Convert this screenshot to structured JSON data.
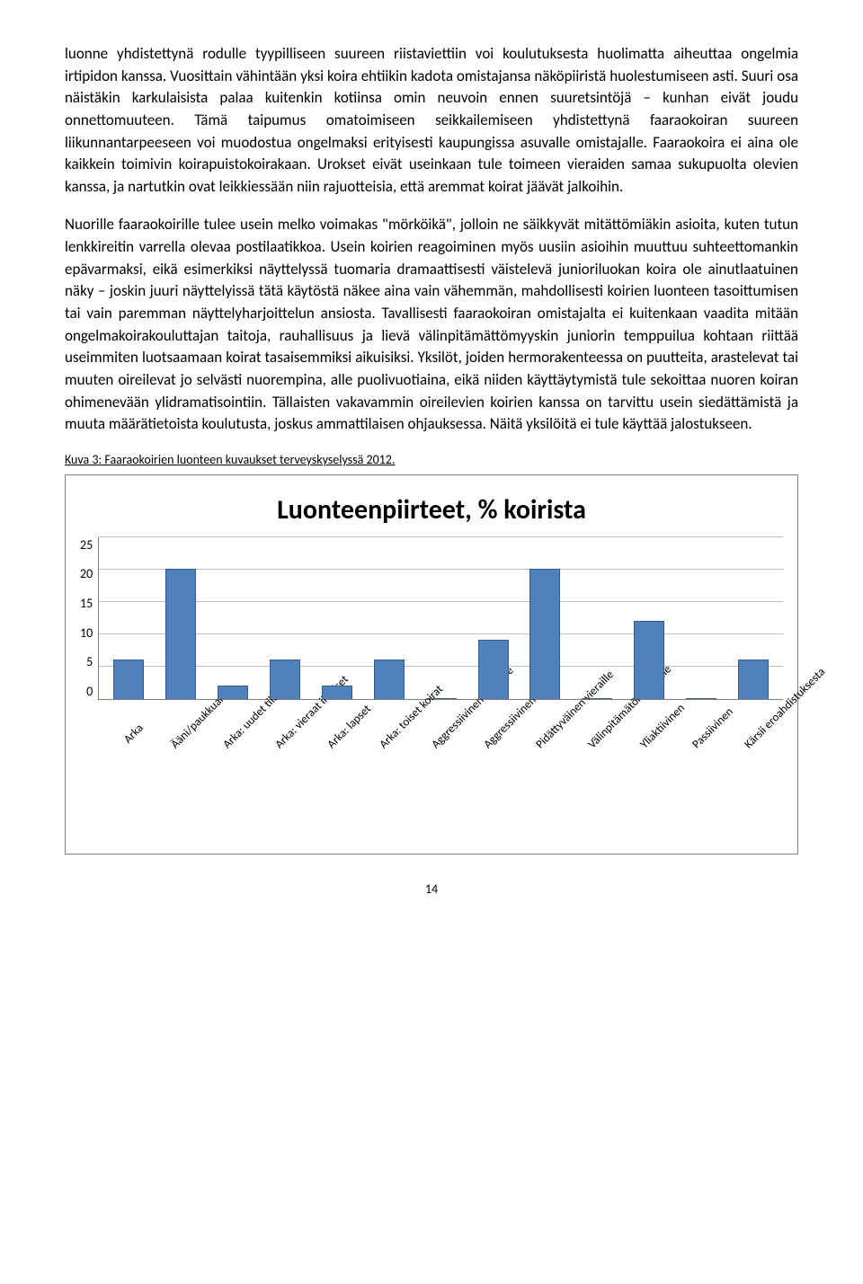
{
  "paragraphs": {
    "p1": "luonne yhdistettynä rodulle tyypilliseen suureen riistaviettiin voi koulutuksesta huolimatta aiheuttaa ongelmia irtipidon kanssa. Vuosittain vähintään yksi koira ehtiikin kadota omistajansa näköpiiristä huolestumiseen asti. Suuri osa näistäkin karkulaisista palaa kuitenkin kotiinsa omin neuvoin ennen suuretsintöjä – kunhan eivät joudu onnettomuuteen. Tämä taipumus omatoimiseen seikkailemiseen yhdistettynä faaraokoiran suureen liikunnantarpeeseen voi muodostua ongelmaksi erityisesti kaupungissa asuvalle omistajalle. Faaraokoira ei aina ole kaikkein toimivin koirapuistokoirakaan. Urokset eivät useinkaan tule toimeen vieraiden samaa sukupuolta olevien kanssa, ja nartutkin ovat leikkiessään niin rajuotteisia, että aremmat koirat jäävät jalkoihin.",
    "p2": "Nuorille faaraokoirille tulee usein melko voimakas \"mörköikä\", jolloin ne säikkyvät mitättömiäkin asioita, kuten tutun lenkkireitin varrella olevaa postilaatikkoa. Usein koirien reagoiminen myös uusiin asioihin muuttuu suhteettomankin epävarmaksi, eikä esimerkiksi näyttelyssä tuomaria dramaattisesti väistelevä junioriluokan koira ole ainutlaatuinen näky – joskin juuri näyttelyissä tätä käytöstä näkee aina vain vähemmän, mahdollisesti koirien luonteen tasoittumisen tai vain paremman näyttelyharjoittelun ansiosta. Tavallisesti faaraokoiran omistajalta ei kuitenkaan vaadita mitään ongelmakoira­kouluttajan taitoja, rauhallisuus ja lievä välinpitämättömyyskin juniorin temppuilua kohtaan riittää useimmiten luotsaamaan koirat tasaisemmiksi aikuisiksi. Yksilöt, joiden hermorakenteessa on puutteita, arastelevat tai muuten oireilevat jo selvästi nuorempina, alle puolivuotiaina, eikä niiden käyttäytymistä tule sekoittaa nuoren koiran ohimenevään ylidramatisointiin. Tällaisten vakavammin oireilevien koirien kanssa on tarvittu usein siedättämistä ja muuta määrätietoista koulutusta, joskus ammattilaisen ohjauksessa. Näitä yksilöitä ei tule käyttää jalostukseen."
  },
  "caption": "Kuva 3: Faaraokoirien luonteen kuvaukset terveyskyselyssä 2012.",
  "chart": {
    "type": "bar",
    "title": "Luonteenpiirteet, % koirista",
    "ylim": [
      0,
      25
    ],
    "ytick_step": 5,
    "bar_color": "#4f81bd",
    "bar_border": "#385d8a",
    "grid_color": "#bfbfbf",
    "axis_color": "#808080",
    "background_color": "#ffffff",
    "title_fontsize": 30,
    "label_fontsize": 13,
    "categories": [
      "Arka",
      "Ääni/paukkuarka",
      "Arka: uudet tilanteet",
      "Arka: vieraat ihmiset",
      "Arka: lapset",
      "Arka: toiset koirat",
      "Aggressiivinen ihmisille",
      "Aggressiivinen koirille",
      "Pidättyväinen vieraille",
      "Välinpitämätön vieraille",
      "Yliaktiivinen",
      "Passiivinen",
      "Kärsii eroahdistuksesta"
    ],
    "values": [
      6,
      20,
      2,
      6,
      2,
      6,
      0,
      9,
      20,
      0,
      12,
      0,
      6
    ]
  },
  "page_number": "14"
}
